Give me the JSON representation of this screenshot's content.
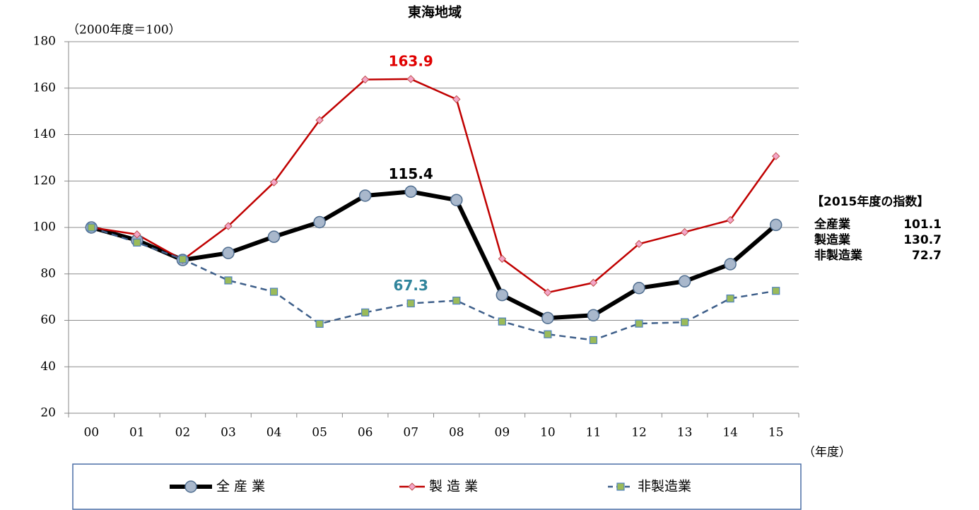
{
  "chart_data": {
    "type": "line",
    "title": "東海地域",
    "y_axis_label": "（2000年度＝100）",
    "x_axis_label": "（年度）",
    "categories": [
      "00",
      "01",
      "02",
      "03",
      "04",
      "05",
      "06",
      "07",
      "08",
      "09",
      "10",
      "11",
      "12",
      "13",
      "14",
      "15"
    ],
    "ylim": [
      20,
      180
    ],
    "yticks": [
      20,
      40,
      60,
      80,
      100,
      120,
      140,
      160,
      180
    ],
    "grid": true,
    "series": [
      {
        "name": "全 産 業",
        "color": "#000000",
        "marker": "circle",
        "dash": false,
        "values": [
          100,
          94.5,
          86,
          89,
          96,
          102.3,
          113.7,
          115.4,
          111.8,
          70.9,
          61,
          62.2,
          73.9,
          76.8,
          84.2,
          101.1
        ],
        "value_labels": [
          null,
          null,
          null,
          null,
          null,
          null,
          null,
          "115.4",
          null,
          null,
          null,
          null,
          null,
          null,
          null,
          null
        ],
        "label_color": "#000000"
      },
      {
        "name": "製 造 業",
        "color": "#c00000",
        "marker": "diamond",
        "dash": false,
        "values": [
          100,
          97,
          86,
          100.6,
          119.4,
          146.2,
          163.7,
          163.9,
          155.2,
          86.5,
          72,
          76.2,
          92.9,
          98,
          103.2,
          130.7
        ],
        "value_labels": [
          null,
          null,
          null,
          null,
          null,
          null,
          null,
          "163.9",
          null,
          null,
          null,
          null,
          null,
          null,
          null,
          null
        ],
        "label_color": "#e00000"
      },
      {
        "name": "非製造業",
        "color": "#3e5f8a",
        "marker": "square",
        "dash": true,
        "values": [
          100,
          93.5,
          86.3,
          77.2,
          72.3,
          58.5,
          63.4,
          67.3,
          68.5,
          59.5,
          54,
          51.5,
          58.6,
          59.2,
          69.4,
          72.7
        ],
        "value_labels": [
          null,
          null,
          null,
          null,
          null,
          null,
          null,
          "67.3",
          null,
          null,
          null,
          null,
          null,
          null,
          null,
          null
        ],
        "label_color": "#31859c"
      }
    ],
    "side_note": {
      "title": "【2015年度の指数】",
      "rows": [
        [
          "全産業",
          "101.1"
        ],
        [
          "製造業",
          "130.7"
        ],
        [
          "非製造業",
          "72.7"
        ]
      ]
    }
  }
}
